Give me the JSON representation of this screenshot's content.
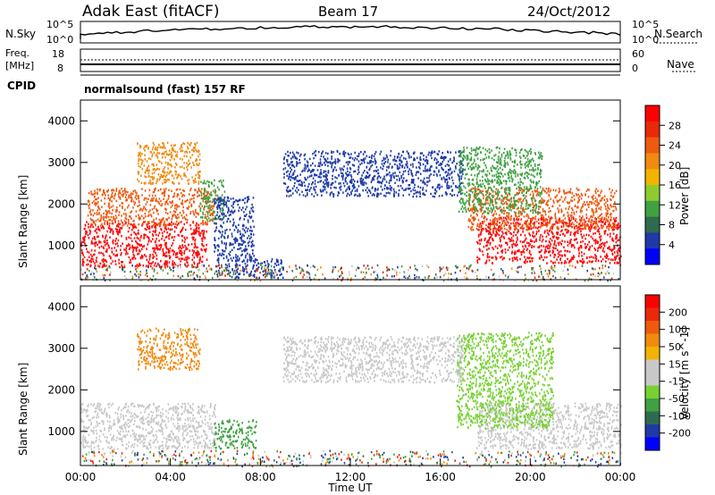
{
  "header": {
    "station": "Adak East (fitACF)",
    "beam": "Beam 17",
    "date": "24/Oct/2012"
  },
  "top_panels": {
    "nsky_label": "N.Sky",
    "nsky_hi": "10^5",
    "nsky_lo": "10^0",
    "nsearch_label": "N.Search",
    "nsearch_hi": "10^5",
    "nsearch_lo": "10^0",
    "freq_label": "Freq.",
    "freq_unit": "[MHz]",
    "freq_hi": "18",
    "freq_lo": "8",
    "nave_label": "Nave",
    "nave_hi": "60",
    "nave_lo": "0",
    "cpid_label": "CPID",
    "cpid_value": "normalsound (fast) 157 RF"
  },
  "axes": {
    "ylabel": "Slant Range [km]",
    "yticks": [
      "1000",
      "2000",
      "3000",
      "4000"
    ],
    "xticks": [
      "00:00",
      "04:00",
      "08:00",
      "12:00",
      "16:00",
      "20:00",
      "00:00"
    ],
    "xlabel": "Time UT"
  },
  "power_scale": {
    "label": "Power [dB]",
    "ticks": [
      "4",
      "8",
      "12",
      "16",
      "20",
      "24",
      "28"
    ],
    "colors": [
      "#0000ff",
      "#1f3aa8",
      "#2e6b4e",
      "#3fa142",
      "#8ecb2e",
      "#f2b400",
      "#f08a10",
      "#ee5a10",
      "#e82a08",
      "#ff0000"
    ]
  },
  "velocity_scale": {
    "label": "Velocity [m s^-1]",
    "ticks": [
      "200",
      "100",
      "50",
      "15",
      "-15",
      "-50",
      "-100",
      "-200"
    ],
    "colors": [
      "#0000ff",
      "#1f3aa8",
      "#2e6b4e",
      "#3fa142",
      "#77d132",
      "#c8c8c8",
      "#c8c8c8",
      "#f2b400",
      "#f08a10",
      "#ee5a10",
      "#e82a08",
      "#ff0000"
    ]
  },
  "chart_data": {
    "type": "heatmap",
    "x_range_hours": [
      0,
      24
    ],
    "y_range_km": [
      180,
      4500
    ],
    "power_panel": [
      {
        "name": "red-near",
        "t0": 0.0,
        "t1": 5.6,
        "r0": 500,
        "r1": 1600,
        "c": "#ff0000"
      },
      {
        "name": "red-near-2",
        "t0": 17.6,
        "t1": 24.0,
        "r0": 600,
        "r1": 1700,
        "c": "#ff0000"
      },
      {
        "name": "orange-band",
        "t0": 0.3,
        "t1": 6.0,
        "r0": 1500,
        "r1": 2400,
        "c": "#ee5a10"
      },
      {
        "name": "orange-band-2",
        "t0": 17.2,
        "t1": 23.8,
        "r0": 1400,
        "r1": 2400,
        "c": "#ee5a10"
      },
      {
        "name": "green-patch",
        "t0": 5.3,
        "t1": 6.4,
        "r0": 1600,
        "r1": 2600,
        "c": "#3fa142"
      },
      {
        "name": "blue-patch",
        "t0": 5.9,
        "t1": 7.7,
        "r0": 700,
        "r1": 2200,
        "c": "#1f3aa8"
      },
      {
        "name": "blue-arc",
        "t0": 9.0,
        "t1": 17.0,
        "r0": 2200,
        "r1": 3300,
        "c": "#1f3aa8"
      },
      {
        "name": "orange-upper",
        "t0": 2.5,
        "t1": 5.3,
        "r0": 2500,
        "r1": 3500,
        "c": "#f08a10"
      },
      {
        "name": "green-upper",
        "t0": 16.8,
        "t1": 20.5,
        "r0": 1800,
        "r1": 3400,
        "c": "#3fa142"
      },
      {
        "name": "blue-near-ground",
        "t0": 6.0,
        "t1": 9.0,
        "r0": 250,
        "r1": 700,
        "c": "#1f3aa8"
      }
    ],
    "velocity_panel": [
      {
        "name": "grey-near",
        "t0": 0.0,
        "t1": 6.0,
        "r0": 600,
        "r1": 1700,
        "c": "#c8c8c8"
      },
      {
        "name": "grey-near-2",
        "t0": 17.6,
        "t1": 24.0,
        "r0": 600,
        "r1": 1700,
        "c": "#c8c8c8"
      },
      {
        "name": "green-patch",
        "t0": 5.9,
        "t1": 7.8,
        "r0": 600,
        "r1": 1300,
        "c": "#3fa142"
      },
      {
        "name": "green-arc",
        "t0": 16.7,
        "t1": 21.0,
        "r0": 1100,
        "r1": 3400,
        "c": "#77d132"
      },
      {
        "name": "orange-upper",
        "t0": 2.5,
        "t1": 5.3,
        "r0": 2500,
        "r1": 3500,
        "c": "#f08a10"
      },
      {
        "name": "grey-arc",
        "t0": 9.0,
        "t1": 17.0,
        "r0": 2200,
        "r1": 3300,
        "c": "#c8c8c8"
      }
    ]
  }
}
